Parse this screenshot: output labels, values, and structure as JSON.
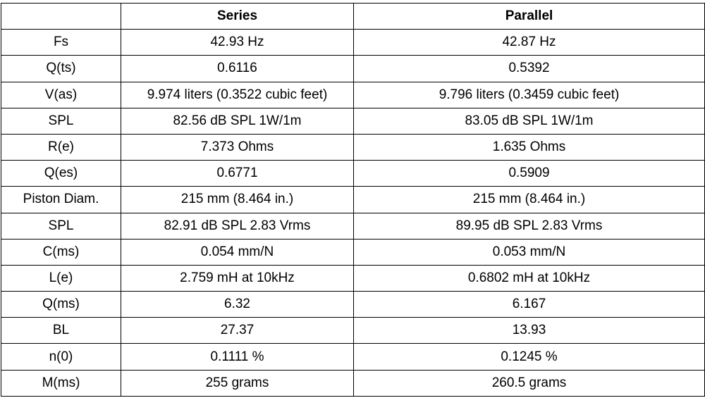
{
  "table": {
    "headers": [
      "",
      "Series",
      "Parallel"
    ],
    "rows": [
      {
        "param": "Fs",
        "series": "42.93 Hz",
        "parallel": "42.87 Hz"
      },
      {
        "param": "Q(ts)",
        "series": "0.6116",
        "parallel": "0.5392"
      },
      {
        "param": "V(as)",
        "series": "9.974 liters (0.3522 cubic feet)",
        "parallel": "9.796 liters (0.3459 cubic feet)"
      },
      {
        "param": "SPL",
        "series": "82.56 dB SPL 1W/1m",
        "parallel": "83.05 dB SPL 1W/1m"
      },
      {
        "param": "R(e)",
        "series": "7.373 Ohms",
        "parallel": "1.635 Ohms"
      },
      {
        "param": "Q(es)",
        "series": "0.6771",
        "parallel": "0.5909"
      },
      {
        "param": "Piston Diam.",
        "series": "215 mm (8.464 in.)",
        "parallel": "215 mm (8.464 in.)"
      },
      {
        "param": "SPL",
        "series": "82.91 dB SPL 2.83 Vrms",
        "parallel": "89.95 dB SPL 2.83 Vrms"
      },
      {
        "param": "C(ms)",
        "series": "0.054 mm/N",
        "parallel": "0.053 mm/N"
      },
      {
        "param": "L(e)",
        "series": "2.759 mH at 10kHz",
        "parallel": "0.6802 mH at 10kHz"
      },
      {
        "param": "Q(ms)",
        "series": "6.32",
        "parallel": "6.167"
      },
      {
        "param": "BL",
        "series": "27.37",
        "parallel": "13.93"
      },
      {
        "param": "n(0)",
        "series": "0.1111 %",
        "parallel": "0.1245 %"
      },
      {
        "param": "M(ms)",
        "series": "255 grams",
        "parallel": "260.5 grams"
      }
    ]
  }
}
